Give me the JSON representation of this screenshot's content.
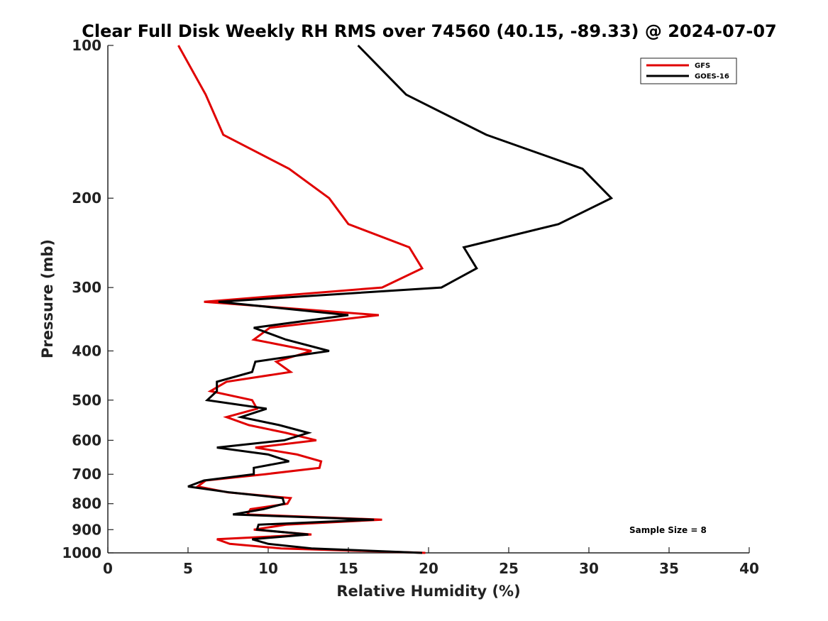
{
  "chart_data": {
    "type": "line",
    "title": "Clear Full Disk Weekly RH RMS over 74560 (40.15, -89.33) @ 2024-07-07",
    "xlabel": "Relative Humidity (%)",
    "ylabel": "Pressure (mb)",
    "xlim": [
      0,
      40
    ],
    "ylim": [
      100,
      1000
    ],
    "y_scale": "log",
    "y_reversed": true,
    "xticks": [
      0,
      5,
      10,
      15,
      20,
      25,
      30,
      35,
      40
    ],
    "yticks": [
      100,
      200,
      300,
      400,
      500,
      600,
      700,
      800,
      900,
      1000
    ],
    "grid": false,
    "legend_position": "top-right",
    "annotation": "Sample Size = 8",
    "series": [
      {
        "name": "GFS",
        "color": "#e00000",
        "points": [
          [
            4.4,
            100
          ],
          [
            6.1,
            125
          ],
          [
            7.2,
            150
          ],
          [
            11.3,
            175
          ],
          [
            13.8,
            200
          ],
          [
            15.0,
            225
          ],
          [
            18.8,
            250
          ],
          [
            19.6,
            275
          ],
          [
            17.1,
            300
          ],
          [
            6.0,
            320
          ],
          [
            16.9,
            340
          ],
          [
            10.1,
            360
          ],
          [
            9.1,
            380
          ],
          [
            12.7,
            400
          ],
          [
            10.5,
            420
          ],
          [
            11.4,
            440
          ],
          [
            7.4,
            460
          ],
          [
            6.4,
            480
          ],
          [
            9.0,
            500
          ],
          [
            9.3,
            520
          ],
          [
            7.4,
            540
          ],
          [
            8.8,
            560
          ],
          [
            11.1,
            580
          ],
          [
            13.0,
            600
          ],
          [
            9.2,
            620
          ],
          [
            11.8,
            640
          ],
          [
            13.3,
            660
          ],
          [
            13.2,
            680
          ],
          [
            9.8,
            700
          ],
          [
            6.1,
            720
          ],
          [
            5.6,
            740
          ],
          [
            7.5,
            760
          ],
          [
            11.4,
            780
          ],
          [
            11.2,
            800
          ],
          [
            8.9,
            820
          ],
          [
            8.7,
            840
          ],
          [
            17.1,
            860
          ],
          [
            11.1,
            880
          ],
          [
            9.1,
            900
          ],
          [
            12.7,
            920
          ],
          [
            6.8,
            940
          ],
          [
            7.6,
            960
          ],
          [
            10.8,
            980
          ],
          [
            19.8,
            1000
          ]
        ]
      },
      {
        "name": "GOES-16",
        "color": "#000000",
        "points": [
          [
            15.6,
            100
          ],
          [
            18.6,
            125
          ],
          [
            23.6,
            150
          ],
          [
            29.6,
            175
          ],
          [
            31.4,
            200
          ],
          [
            28.1,
            225
          ],
          [
            22.2,
            250
          ],
          [
            23.0,
            275
          ],
          [
            20.8,
            300
          ],
          [
            6.9,
            320
          ],
          [
            15.0,
            340
          ],
          [
            9.1,
            360
          ],
          [
            11.1,
            380
          ],
          [
            13.8,
            400
          ],
          [
            9.2,
            420
          ],
          [
            9.0,
            440
          ],
          [
            6.8,
            460
          ],
          [
            6.8,
            480
          ],
          [
            6.2,
            500
          ],
          [
            9.9,
            520
          ],
          [
            8.3,
            540
          ],
          [
            10.7,
            560
          ],
          [
            12.5,
            580
          ],
          [
            11.0,
            600
          ],
          [
            6.8,
            620
          ],
          [
            10.0,
            640
          ],
          [
            11.3,
            660
          ],
          [
            9.1,
            680
          ],
          [
            9.1,
            700
          ],
          [
            6.0,
            720
          ],
          [
            5.0,
            740
          ],
          [
            7.6,
            760
          ],
          [
            10.9,
            780
          ],
          [
            11.0,
            800
          ],
          [
            9.7,
            820
          ],
          [
            7.8,
            840
          ],
          [
            16.6,
            860
          ],
          [
            9.4,
            880
          ],
          [
            9.3,
            900
          ],
          [
            12.5,
            920
          ],
          [
            9.0,
            940
          ],
          [
            10.0,
            960
          ],
          [
            12.7,
            980
          ],
          [
            19.6,
            1000
          ]
        ]
      }
    ]
  }
}
